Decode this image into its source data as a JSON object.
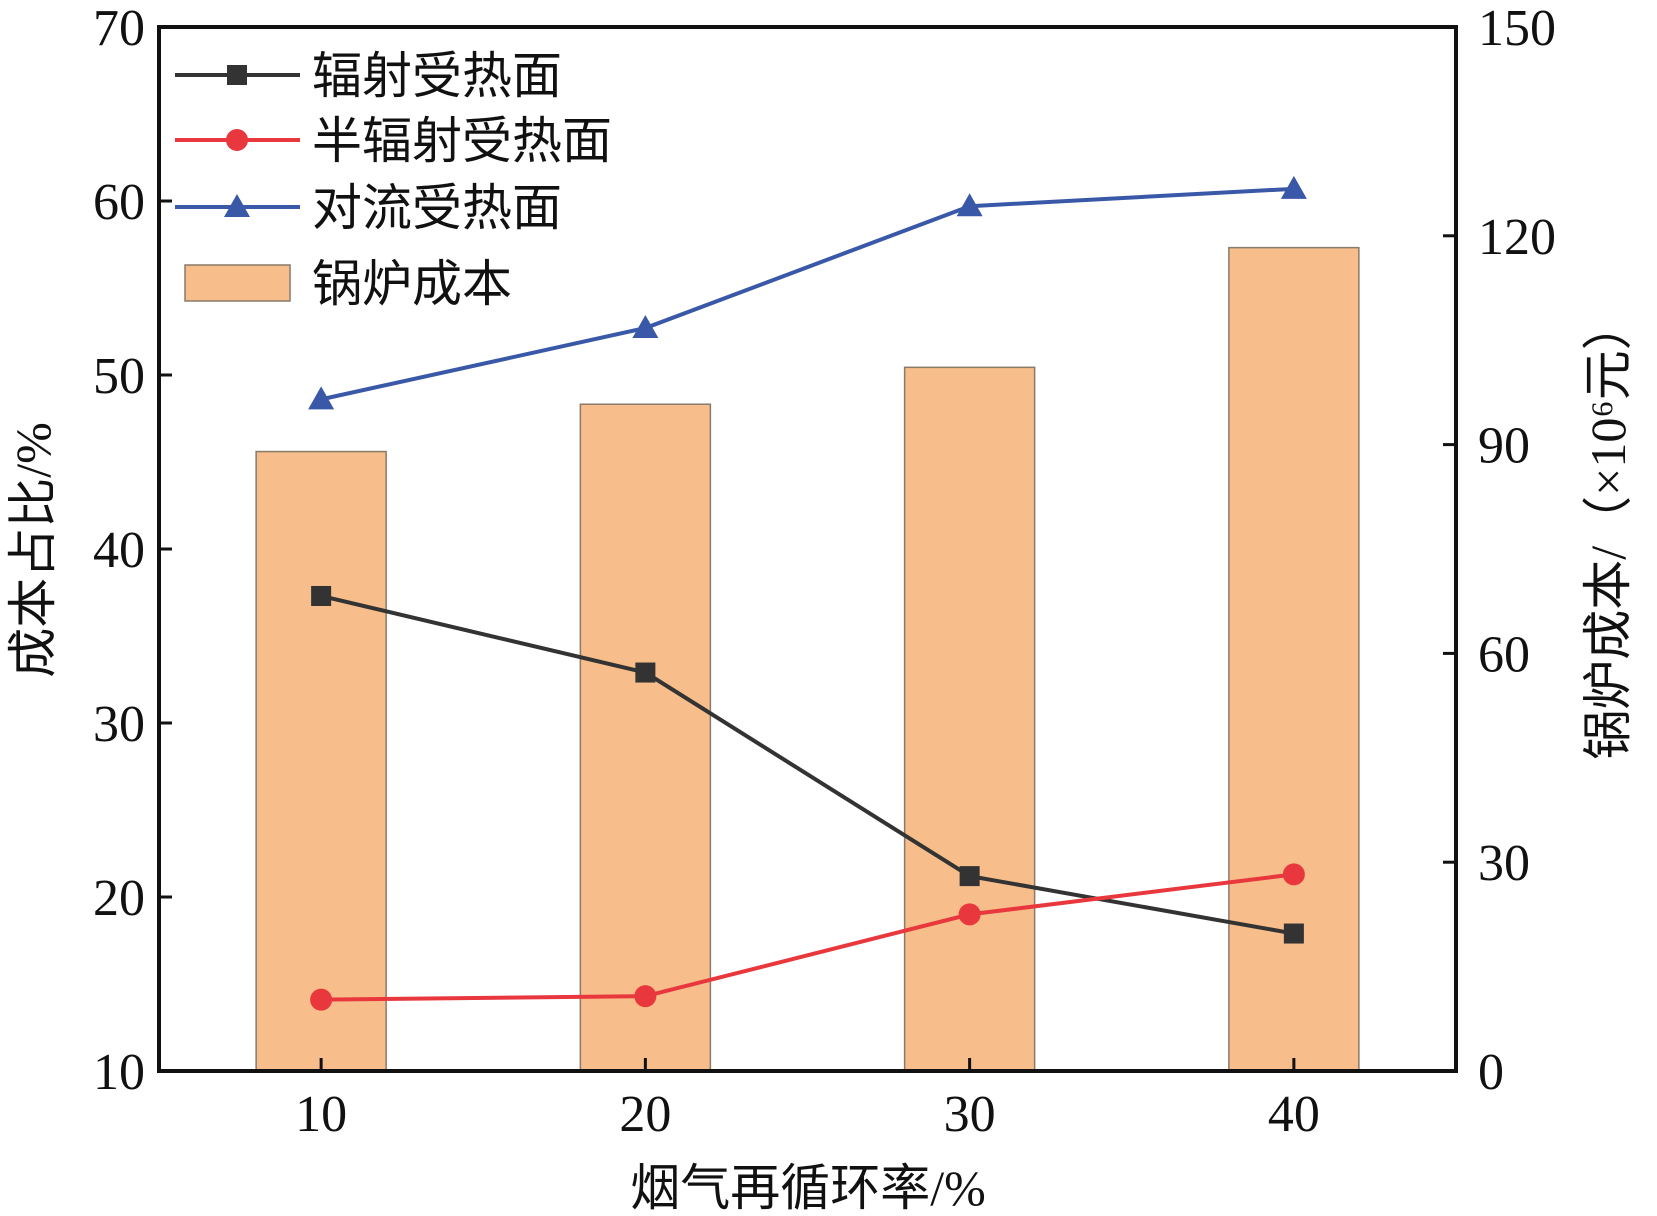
{
  "chart_data": {
    "type": "bar+line",
    "xlabel": "烟气再循环率/%",
    "ylabel_left": "成本占比/%",
    "ylabel_right": "锅炉成本/（×10⁶元）",
    "x": [
      10,
      20,
      30,
      40
    ],
    "x_ticks": [
      "10",
      "20",
      "30",
      "40"
    ],
    "xlim": [
      5,
      45
    ],
    "ylim_left": [
      10,
      70
    ],
    "ylim_right": [
      0,
      150
    ],
    "yticks_left": [
      "10",
      "20",
      "30",
      "40",
      "50",
      "60",
      "70"
    ],
    "yticks_right": [
      "0",
      "30",
      "60",
      "90",
      "120",
      "150"
    ],
    "legend_position": "top-left",
    "series": [
      {
        "name": "辐射受热面",
        "type": "line",
        "axis": "left",
        "marker": "square",
        "color": "#333333",
        "values": [
          37.3,
          32.9,
          21.2,
          17.9
        ]
      },
      {
        "name": "半辐射受热面",
        "type": "line",
        "axis": "left",
        "marker": "circle",
        "color": "#e8383d",
        "values": [
          14.1,
          14.3,
          19.0,
          21.3
        ]
      },
      {
        "name": "对流受热面",
        "type": "line",
        "axis": "left",
        "marker": "triangle",
        "color": "#3a58a8",
        "values": [
          48.6,
          52.7,
          59.7,
          60.7
        ]
      },
      {
        "name": "锅炉成本",
        "type": "bar",
        "axis": "right",
        "color": "#f7bd8a",
        "values": [
          89.0,
          95.8,
          101.1,
          118.3
        ]
      }
    ]
  }
}
